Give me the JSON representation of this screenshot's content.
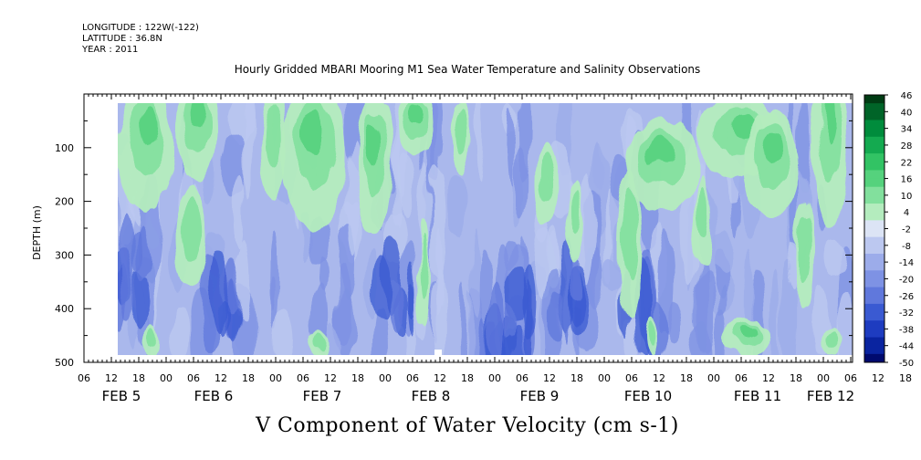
{
  "header": {
    "longitude": "LONGITUDE : 122W(-122)",
    "latitude": "LATITUDE : 36.8N",
    "year": "YEAR : 2011"
  },
  "chart_data": {
    "type": "heatmap",
    "title": "Hourly Gridded MBARI Mooring M1 Sea Water Temperature and Salinity Observations",
    "xlabel": "V Component of Water Velocity (cm s-1)",
    "ylabel": "DEPTH (m)",
    "ylim": [
      500,
      0
    ],
    "y_ticks": [
      "100",
      "200",
      "300",
      "400",
      "500"
    ],
    "x_hour_ticks": [
      "06",
      "12",
      "18",
      "00",
      "06",
      "12",
      "18",
      "00",
      "06",
      "12",
      "18",
      "00",
      "06",
      "12",
      "18",
      "00",
      "06",
      "12",
      "18",
      "00",
      "06",
      "12",
      "18",
      "00",
      "06",
      "12",
      "18",
      "00",
      "06",
      "12",
      "18",
      "00",
      "06"
    ],
    "x_day_labels": [
      "FEB 5",
      "FEB 6",
      "FEB 7",
      "FEB 8",
      "FEB 9",
      "FEB 10",
      "FEB 11",
      "FEB 12"
    ],
    "time_range": [
      "FEB 5 06",
      "FEB 12 06"
    ],
    "colorbar": {
      "levels": [
        "46",
        "40",
        "34",
        "28",
        "22",
        "16",
        "10",
        "4",
        "-2",
        "-8",
        "-14",
        "-20",
        "-26",
        "-32",
        "-38",
        "-44",
        "-50"
      ],
      "colors": [
        "#003c14",
        "#006428",
        "#008c3c",
        "#14aa50",
        "#32c364",
        "#55d27d",
        "#82e09d",
        "#b4ecbe",
        "#dce4f5",
        "#bcc8f0",
        "#9cacea",
        "#7e92e4",
        "#6078dc",
        "#3a5ad2",
        "#1e3cc0",
        "#0a24a0",
        "#000a6e"
      ]
    },
    "field_summary": "Values mostly in -14 to -2 (blue) with positive patches of +4 to +16 (green) concentrated in the upper 250 m, strongest near FEB 6 00, FEB 6 06-12, FEB 7 06, FEB 8 06, FEB 10 06-18 and FEB 11 06-18; most negative (-26 to -32) near 350-480 m around FEB 9 00-06."
  }
}
